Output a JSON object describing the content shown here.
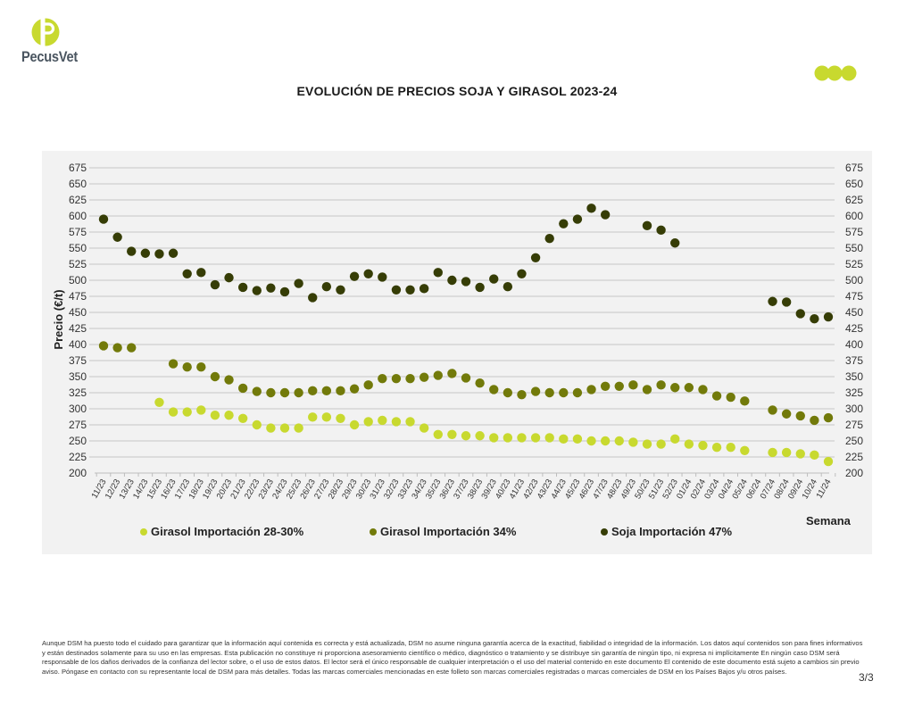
{
  "brand": {
    "name": "PecusVet",
    "logo_letter": "P",
    "accent_color": "#c8d92f",
    "text_color": "#4a5560"
  },
  "page": {
    "title": "EVOLUCIÓN DE PRECIOS SOJA Y GIRASOL 2023-24",
    "page_number": "3/3",
    "disclaimer": "Aunque DSM ha puesto todo el cuidado para garantizar que la información aquí contenida es correcta y está actualizada, DSM no asume ninguna garantía acerca de la exactitud, fiabilidad o integridad de la información. Los datos aquí contenidos son para fines informativos y están destinados solamente para su uso en las empresas. Esta publicación no constituye ni proporciona asesoramiento científico o médico, diagnóstico o tratamiento y se distribuye sin garantía de ningún tipo, ni expresa ni implícitamente En ningún caso DSM será responsable de los daños derivados de la confianza del lector sobre, o el uso de estos datos. El lector será el único responsable de cualquier interpretación o el uso del material contenido en este documento El contenido de este documento está sujeto a cambios sin previo aviso. Póngase en contacto con su representante local de DSM para más detalles. Todas las marcas comerciales mencionadas en este folleto son marcas comerciales registradas o marcas comerciales de DSM en los Países Bajos y/u otros países."
  },
  "chart_data": {
    "type": "scatter",
    "title": "EVOLUCIÓN DE PRECIOS SOJA Y GIRASOL 2023-24",
    "xlabel": "Semana",
    "ylabel": "Precio (€/t)",
    "ylim": [
      200,
      675
    ],
    "yticks": [
      200,
      225,
      250,
      275,
      300,
      325,
      350,
      375,
      400,
      425,
      450,
      475,
      500,
      525,
      550,
      575,
      600,
      625,
      650,
      675
    ],
    "secondary_y_axis": true,
    "grid": "horizontal",
    "legend_position": "bottom",
    "categories": [
      "11/23",
      "12/23",
      "13/23",
      "14/23",
      "15/23",
      "16/23",
      "17/23",
      "18/23",
      "19/23",
      "20/23",
      "21/23",
      "22/23",
      "23/23",
      "24/23",
      "25/23",
      "26/23",
      "27/23",
      "28/23",
      "29/23",
      "30/23",
      "31/23",
      "32/23",
      "33/23",
      "34/23",
      "35/23",
      "36/23",
      "37/23",
      "38/23",
      "39/23",
      "40/23",
      "41/23",
      "42/23",
      "43/23",
      "44/23",
      "45/23",
      "46/23",
      "47/23",
      "48/23",
      "49/23",
      "50/23",
      "51/23",
      "52/23",
      "01/24",
      "02/24",
      "03/24",
      "04/24",
      "05/24",
      "06/24",
      "07/24",
      "08/24",
      "09/24",
      "10/24",
      "11/24"
    ],
    "series": [
      {
        "name": "Girasol Importación 28-30%",
        "color": "#c8d92f",
        "values": [
          null,
          null,
          null,
          null,
          310,
          295,
          295,
          298,
          290,
          290,
          285,
          275,
          270,
          270,
          270,
          287,
          287,
          285,
          275,
          280,
          282,
          280,
          280,
          270,
          260,
          260,
          258,
          258,
          255,
          255,
          255,
          255,
          255,
          253,
          253,
          250,
          250,
          250,
          248,
          245,
          245,
          253,
          245,
          243,
          240,
          240,
          235,
          null,
          232,
          232,
          230,
          228,
          218
        ]
      },
      {
        "name": "Girasol Importación 34%",
        "color": "#727a0a",
        "values": [
          398,
          395,
          395,
          null,
          null,
          370,
          365,
          365,
          350,
          345,
          332,
          327,
          325,
          325,
          325,
          328,
          328,
          328,
          331,
          337,
          347,
          347,
          347,
          349,
          352,
          355,
          348,
          340,
          330,
          325,
          322,
          327,
          325,
          325,
          325,
          330,
          335,
          335,
          337,
          330,
          337,
          333,
          333,
          330,
          320,
          318,
          312,
          null,
          298,
          292,
          289,
          282,
          286
        ]
      },
      {
        "name": "Soja Importación 47%",
        "color": "#363d06",
        "values": [
          595,
          567,
          545,
          542,
          541,
          542,
          510,
          512,
          493,
          504,
          489,
          484,
          488,
          482,
          495,
          473,
          490,
          485,
          506,
          510,
          505,
          485,
          485,
          487,
          512,
          500,
          498,
          489,
          502,
          490,
          510,
          535,
          565,
          588,
          595,
          612,
          602,
          null,
          null,
          585,
          578,
          558,
          null,
          null,
          null,
          null,
          null,
          null,
          467,
          466,
          448,
          440,
          443
        ]
      }
    ]
  }
}
